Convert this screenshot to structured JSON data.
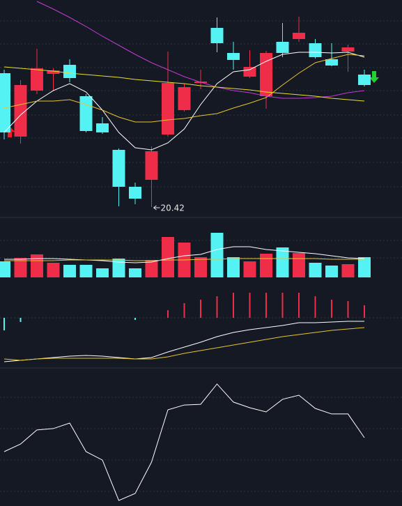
{
  "chart_data": [
    {
      "type": "candlestick",
      "up_color": "#f02d48",
      "down_color": "#54f2f2",
      "ylim": [
        20.27,
        23.39
      ],
      "open": [
        22.34,
        21.43,
        22.09,
        22.33,
        22.46,
        22.01,
        21.62,
        21.24,
        20.71,
        20.81,
        21.46,
        21.81,
        22.2,
        22.99,
        22.63,
        22.29,
        22.01,
        22.79,
        22.83,
        22.77,
        22.54,
        22.65,
        22.32
      ],
      "close": [
        21.49,
        22.17,
        22.41,
        22.38,
        22.27,
        21.51,
        21.49,
        20.71,
        20.54,
        21.22,
        22.2,
        22.14,
        22.22,
        22.77,
        22.53,
        22.43,
        22.63,
        22.63,
        22.92,
        22.57,
        22.45,
        22.71,
        22.17
      ],
      "high": [
        22.39,
        22.24,
        22.69,
        22.41,
        22.54,
        22.04,
        21.71,
        21.26,
        20.77,
        21.29,
        22.65,
        22.19,
        22.39,
        23.14,
        22.79,
        22.67,
        22.66,
        23.06,
        23.15,
        22.83,
        22.77,
        22.75,
        22.39
      ],
      "low": [
        21.39,
        21.33,
        22.04,
        22.09,
        22.21,
        21.49,
        21.47,
        20.43,
        20.46,
        20.42,
        21.43,
        21.79,
        22.11,
        22.64,
        22.39,
        22.27,
        21.83,
        22.57,
        22.79,
        22.55,
        22.44,
        22.36,
        22.15
      ],
      "low_label_index": 9,
      "series": [
        {
          "color": "#ffffff",
          "values": [
            21.49,
            21.74,
            21.94,
            22.09,
            22.19,
            22.07,
            21.81,
            21.49,
            21.27,
            21.24,
            21.34,
            21.54,
            21.89,
            22.19,
            22.36,
            22.39,
            22.51,
            22.61,
            22.64,
            22.64,
            22.63,
            22.64,
            22.57
          ]
        },
        {
          "color": "#e8c530",
          "values": [
            21.84,
            21.89,
            21.94,
            21.94,
            21.96,
            21.89,
            21.81,
            21.71,
            21.64,
            21.64,
            21.67,
            21.69,
            21.73,
            21.76,
            21.84,
            21.91,
            21.99,
            22.17,
            22.34,
            22.49,
            22.55,
            22.61,
            22.59
          ]
        },
        {
          "color": "#c23bd4",
          "values": [
            null,
            null,
            23.37,
            23.26,
            23.14,
            23.01,
            22.87,
            22.74,
            22.61,
            22.49,
            22.39,
            22.29,
            22.21,
            22.14,
            22.09,
            22.06,
            22.01,
            21.98,
            21.98,
            21.99,
            22.01,
            22.06,
            22.09
          ]
        },
        {
          "color": "#e8e030",
          "values": [
            22.43,
            22.41,
            22.39,
            22.37,
            22.34,
            22.32,
            22.3,
            22.28,
            22.25,
            22.23,
            22.21,
            22.19,
            22.16,
            22.14,
            22.12,
            22.1,
            22.07,
            22.05,
            22.03,
            22.01,
            21.98,
            21.96,
            21.94
          ]
        }
      ]
    },
    {
      "type": "volume",
      "ylim": [
        0,
        86
      ],
      "values": [
        23,
        28,
        33,
        21,
        18,
        18,
        13,
        27,
        13,
        25,
        58,
        50,
        29,
        64,
        29,
        23,
        34,
        43,
        35,
        21,
        17,
        19,
        29
      ],
      "series": [
        {
          "color": "#ffffff",
          "values": [
            26,
            26,
            27,
            27,
            26,
            25,
            24,
            22,
            21,
            22,
            27,
            31,
            33,
            40,
            44,
            44,
            40,
            38,
            36,
            34,
            31,
            28,
            27
          ]
        },
        {
          "color": "#e8c530",
          "values": [
            24,
            24,
            24,
            24,
            25,
            25,
            25,
            25,
            24,
            24,
            25,
            25,
            26,
            26,
            27,
            27,
            27,
            27,
            27,
            27,
            26,
            26,
            26
          ]
        }
      ]
    },
    {
      "type": "macd",
      "ylim": [
        -72,
        58
      ],
      "values": [
        -18,
        -6,
        0,
        0,
        0,
        0,
        0,
        0,
        -3,
        0,
        11,
        21,
        26,
        31,
        36,
        36,
        36,
        36,
        36,
        31,
        26,
        24,
        18
      ],
      "series": [
        {
          "color": "#ffffff",
          "values": [
            -63,
            -61,
            -59,
            -57,
            -55,
            -54,
            -55,
            -57,
            -59,
            -57,
            -49,
            -42,
            -35,
            -27,
            -21,
            -17,
            -14,
            -11,
            -7,
            -7,
            -6,
            -5,
            -5
          ]
        },
        {
          "color": "#e8c530",
          "values": [
            -59,
            -61,
            -59,
            -58,
            -58,
            -58,
            -58,
            -58,
            -59,
            -59,
            -56,
            -51,
            -47,
            -43,
            -39,
            -35,
            -31,
            -27,
            -24,
            -21,
            -18,
            -16,
            -14
          ]
        }
      ]
    },
    {
      "type": "line",
      "ylim": [
        0,
        100
      ],
      "color": "#ffffff",
      "values": [
        39.4,
        44.9,
        55.1,
        56.1,
        60.1,
        39.4,
        33.3,
        4.0,
        9.1,
        31.8,
        69.7,
        73.2,
        73.7,
        88.4,
        75.3,
        71.2,
        68.2,
        77.3,
        80.3,
        70.7,
        66.7,
        66.7,
        49.5
      ]
    }
  ]
}
